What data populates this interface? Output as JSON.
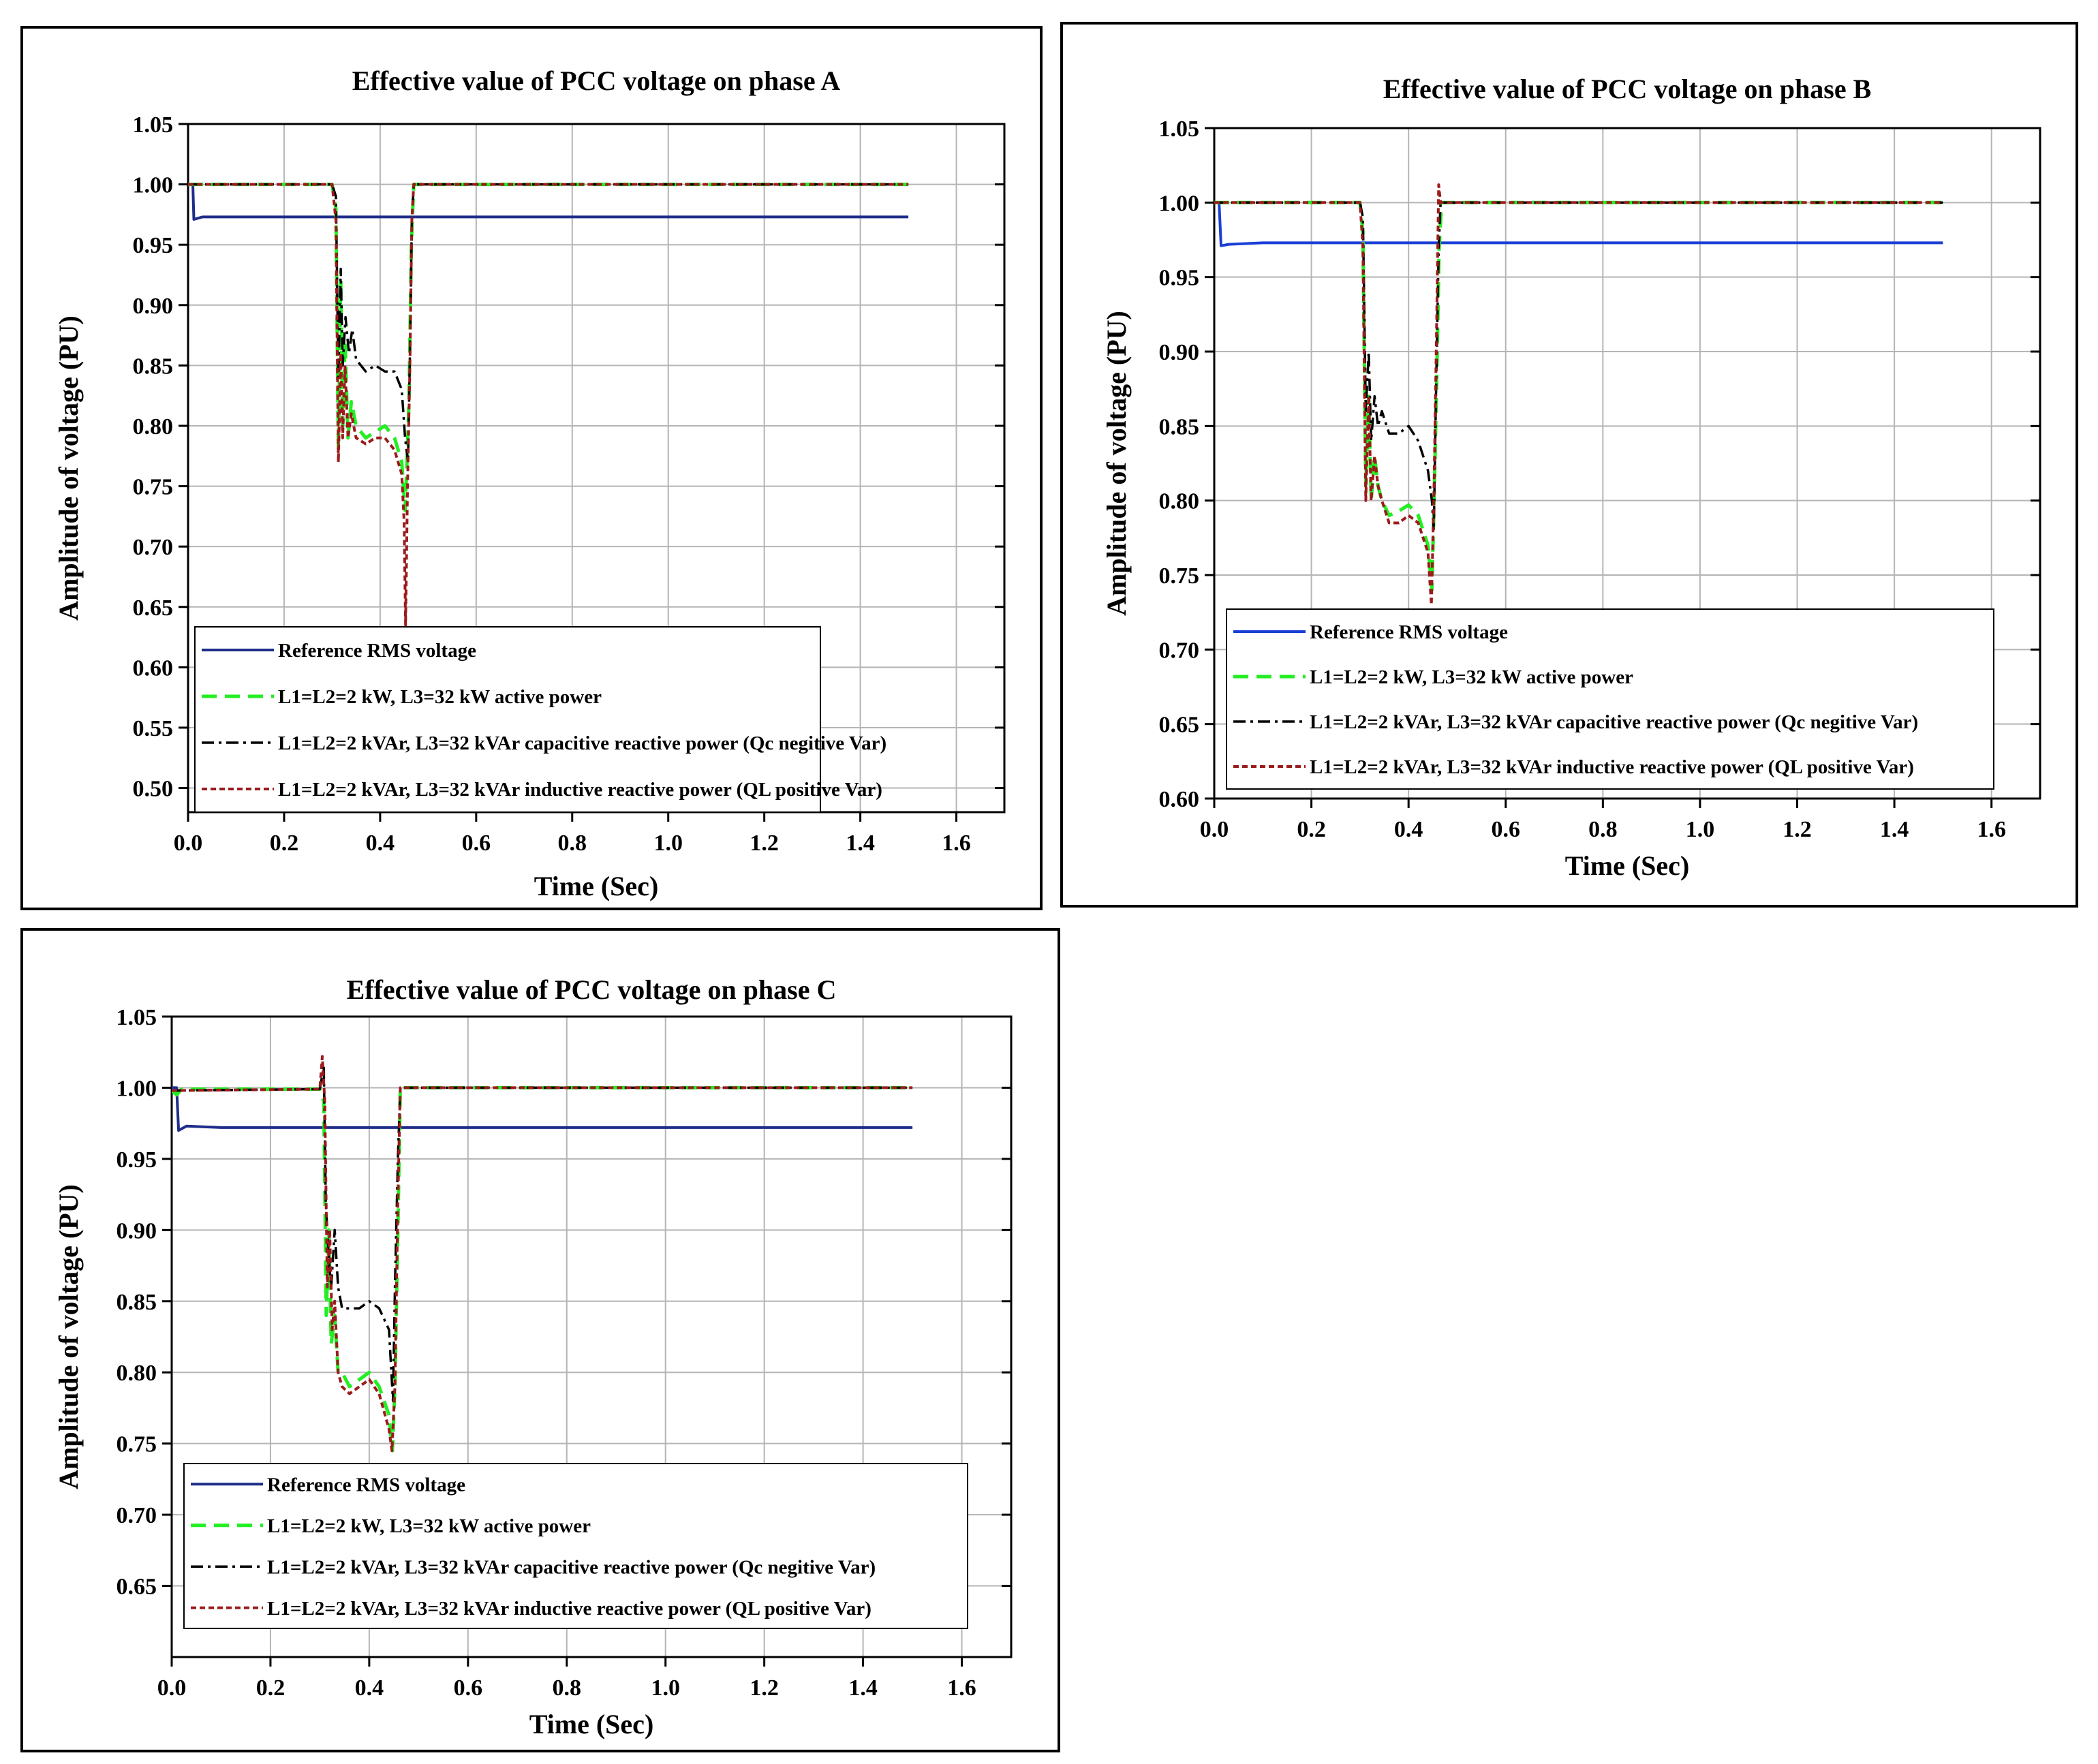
{
  "chart_data": [
    {
      "id": "a",
      "type": "line",
      "title": "Effective value of PCC voltage on phase A",
      "xlabel": "Time (Sec)",
      "ylabel": "Amplitude of voltage (PU)",
      "xlim": [
        0.0,
        1.7
      ],
      "ylim": [
        0.48,
        1.05
      ],
      "x_ticks": [
        "0.0",
        "0.2",
        "0.4",
        "0.6",
        "0.8",
        "1.0",
        "1.2",
        "1.4",
        "1.6"
      ],
      "y_ticks": [
        "0.50",
        "0.55",
        "0.60",
        "0.65",
        "0.70",
        "0.75",
        "0.80",
        "0.85",
        "0.90",
        "0.95",
        "1.00",
        "1.05"
      ],
      "grid": true,
      "legend_position": "bottom",
      "series": [
        {
          "name": "Reference RMS voltage",
          "color": "#1f2d8a",
          "style": "solid",
          "points": [
            [
              0.0,
              1.0
            ],
            [
              0.01,
              1.0
            ],
            [
              0.012,
              0.971
            ],
            [
              0.03,
              0.973
            ],
            [
              0.1,
              0.973
            ],
            [
              1.5,
              0.973
            ]
          ]
        },
        {
          "name": "L1=L2=2 kW, L3=32 kW active power",
          "color": "#22ee22",
          "style": "dashed",
          "points": [
            [
              0.0,
              1.0
            ],
            [
              0.3,
              1.0
            ],
            [
              0.308,
              0.98
            ],
            [
              0.313,
              0.78
            ],
            [
              0.318,
              0.92
            ],
            [
              0.322,
              0.8
            ],
            [
              0.327,
              0.87
            ],
            [
              0.333,
              0.79
            ],
            [
              0.34,
              0.82
            ],
            [
              0.35,
              0.8
            ],
            [
              0.37,
              0.79
            ],
            [
              0.39,
              0.795
            ],
            [
              0.41,
              0.8
            ],
            [
              0.43,
              0.79
            ],
            [
              0.445,
              0.77
            ],
            [
              0.452,
              0.73
            ],
            [
              0.456,
              0.77
            ],
            [
              0.46,
              0.82
            ],
            [
              0.465,
              0.95
            ],
            [
              0.47,
              1.0
            ],
            [
              1.5,
              1.0
            ]
          ]
        },
        {
          "name": "L1=L2=2 kVAr, L3=32 kVAr capacitive reactive power (Qc negitive Var)",
          "color": "#000000",
          "style": "dashdot",
          "points": [
            [
              0.0,
              1.0
            ],
            [
              0.3,
              1.0
            ],
            [
              0.308,
              0.99
            ],
            [
              0.313,
              0.84
            ],
            [
              0.318,
              0.93
            ],
            [
              0.322,
              0.85
            ],
            [
              0.328,
              0.89
            ],
            [
              0.335,
              0.86
            ],
            [
              0.342,
              0.88
            ],
            [
              0.35,
              0.855
            ],
            [
              0.37,
              0.845
            ],
            [
              0.39,
              0.85
            ],
            [
              0.41,
              0.845
            ],
            [
              0.43,
              0.845
            ],
            [
              0.445,
              0.83
            ],
            [
              0.452,
              0.79
            ],
            [
              0.458,
              0.77
            ],
            [
              0.462,
              0.86
            ],
            [
              0.466,
              0.97
            ],
            [
              0.47,
              1.0
            ],
            [
              1.5,
              1.0
            ]
          ]
        },
        {
          "name": "L1=L2=2 kVAr, L3=32 kVAr inductive reactive power (QL positive Var)",
          "color": "#9b1b1b",
          "style": "dotted",
          "points": [
            [
              0.0,
              1.0
            ],
            [
              0.3,
              1.0
            ],
            [
              0.308,
              0.97
            ],
            [
              0.313,
              0.77
            ],
            [
              0.318,
              0.86
            ],
            [
              0.322,
              0.79
            ],
            [
              0.327,
              0.85
            ],
            [
              0.333,
              0.79
            ],
            [
              0.34,
              0.81
            ],
            [
              0.35,
              0.79
            ],
            [
              0.37,
              0.785
            ],
            [
              0.39,
              0.79
            ],
            [
              0.41,
              0.79
            ],
            [
              0.43,
              0.78
            ],
            [
              0.445,
              0.76
            ],
            [
              0.45,
              0.72
            ],
            [
              0.453,
              0.635
            ],
            [
              0.457,
              0.75
            ],
            [
              0.462,
              0.85
            ],
            [
              0.466,
              0.97
            ],
            [
              0.47,
              1.0
            ],
            [
              1.5,
              1.0
            ]
          ]
        }
      ]
    },
    {
      "id": "b",
      "type": "line",
      "title": "Effective value of PCC voltage on phase B",
      "xlabel": "Time (Sec)",
      "ylabel": "Amplitude of voltage (PU)",
      "xlim": [
        0.0,
        1.7
      ],
      "ylim": [
        0.6,
        1.05
      ],
      "x_ticks": [
        "0.0",
        "0.2",
        "0.4",
        "0.6",
        "0.8",
        "1.0",
        "1.2",
        "1.4",
        "1.6"
      ],
      "y_ticks": [
        "0.60",
        "0.65",
        "0.70",
        "0.75",
        "0.80",
        "0.85",
        "0.90",
        "0.95",
        "1.00",
        "1.05"
      ],
      "grid": true,
      "legend_position": "bottom",
      "series": [
        {
          "name": "Reference RMS voltage",
          "color": "#1a3fd6",
          "style": "solid",
          "points": [
            [
              0.0,
              1.0
            ],
            [
              0.01,
              1.0
            ],
            [
              0.014,
              0.971
            ],
            [
              0.03,
              0.972
            ],
            [
              0.1,
              0.973
            ],
            [
              1.5,
              0.973
            ]
          ]
        },
        {
          "name": "L1=L2=2 kW, L3=32 kW active power",
          "color": "#22ee22",
          "style": "dashed",
          "points": [
            [
              0.0,
              1.0
            ],
            [
              0.3,
              1.0
            ],
            [
              0.306,
              0.98
            ],
            [
              0.312,
              0.81
            ],
            [
              0.318,
              0.87
            ],
            [
              0.323,
              0.8
            ],
            [
              0.33,
              0.83
            ],
            [
              0.337,
              0.81
            ],
            [
              0.345,
              0.8
            ],
            [
              0.36,
              0.79
            ],
            [
              0.38,
              0.793
            ],
            [
              0.4,
              0.797
            ],
            [
              0.42,
              0.79
            ],
            [
              0.44,
              0.77
            ],
            [
              0.448,
              0.74
            ],
            [
              0.452,
              0.79
            ],
            [
              0.458,
              0.88
            ],
            [
              0.463,
              0.97
            ],
            [
              0.468,
              1.0
            ],
            [
              1.5,
              1.0
            ]
          ]
        },
        {
          "name": "L1=L2=2 kVAr, L3=32 kVAr capacitive reactive power (Qc negitive Var)",
          "color": "#000000",
          "style": "dashdot",
          "points": [
            [
              0.0,
              1.0
            ],
            [
              0.3,
              1.0
            ],
            [
              0.306,
              0.99
            ],
            [
              0.312,
              0.86
            ],
            [
              0.318,
              0.9
            ],
            [
              0.323,
              0.84
            ],
            [
              0.33,
              0.87
            ],
            [
              0.337,
              0.85
            ],
            [
              0.345,
              0.86
            ],
            [
              0.36,
              0.845
            ],
            [
              0.38,
              0.845
            ],
            [
              0.4,
              0.85
            ],
            [
              0.42,
              0.84
            ],
            [
              0.44,
              0.82
            ],
            [
              0.448,
              0.8
            ],
            [
              0.452,
              0.78
            ],
            [
              0.457,
              0.88
            ],
            [
              0.462,
              0.97
            ],
            [
              0.466,
              1.0
            ],
            [
              1.5,
              1.0
            ]
          ]
        },
        {
          "name": "L1=L2=2 kVAr, L3=32 kVAr inductive reactive power (QL positive Var)",
          "color": "#9b1b1b",
          "style": "dotted",
          "points": [
            [
              0.0,
              1.0
            ],
            [
              0.3,
              1.0
            ],
            [
              0.306,
              0.97
            ],
            [
              0.312,
              0.8
            ],
            [
              0.318,
              0.87
            ],
            [
              0.323,
              0.8
            ],
            [
              0.33,
              0.83
            ],
            [
              0.337,
              0.81
            ],
            [
              0.345,
              0.8
            ],
            [
              0.36,
              0.785
            ],
            [
              0.38,
              0.785
            ],
            [
              0.4,
              0.79
            ],
            [
              0.42,
              0.785
            ],
            [
              0.44,
              0.765
            ],
            [
              0.447,
              0.73
            ],
            [
              0.452,
              0.8
            ],
            [
              0.457,
              0.9
            ],
            [
              0.462,
              1.012
            ],
            [
              0.466,
              1.0
            ],
            [
              1.5,
              1.0
            ]
          ]
        }
      ]
    },
    {
      "id": "c",
      "type": "line",
      "title": "Effective value of PCC voltage on phase C",
      "xlabel": "Time (Sec)",
      "ylabel": "Amplitude of voltage (PU)",
      "xlim": [
        0.0,
        1.7
      ],
      "ylim": [
        0.6,
        1.05
      ],
      "x_ticks": [
        "0.0",
        "0.2",
        "0.4",
        "0.6",
        "0.8",
        "1.0",
        "1.2",
        "1.4",
        "1.6"
      ],
      "y_ticks": [
        "0.65",
        "0.70",
        "0.75",
        "0.80",
        "0.85",
        "0.90",
        "0.95",
        "1.00",
        "1.05"
      ],
      "grid": true,
      "legend_position": "bottom",
      "series": [
        {
          "name": "Reference RMS voltage",
          "color": "#1f2d8a",
          "style": "solid",
          "points": [
            [
              0.0,
              1.0
            ],
            [
              0.01,
              1.0
            ],
            [
              0.014,
              0.97
            ],
            [
              0.03,
              0.973
            ],
            [
              0.1,
              0.972
            ],
            [
              1.5,
              0.972
            ]
          ]
        },
        {
          "name": "L1=L2=2 kW, L3=32 kW active power",
          "color": "#22ee22",
          "style": "dashed",
          "points": [
            [
              0.0,
              0.998
            ],
            [
              0.01,
              0.995
            ],
            [
              0.02,
              0.999
            ],
            [
              0.3,
              0.999
            ],
            [
              0.308,
              0.99
            ],
            [
              0.313,
              0.84
            ],
            [
              0.318,
              0.9
            ],
            [
              0.323,
              0.82
            ],
            [
              0.33,
              0.84
            ],
            [
              0.337,
              0.8
            ],
            [
              0.345,
              0.8
            ],
            [
              0.36,
              0.79
            ],
            [
              0.38,
              0.795
            ],
            [
              0.4,
              0.8
            ],
            [
              0.42,
              0.79
            ],
            [
              0.44,
              0.77
            ],
            [
              0.447,
              0.745
            ],
            [
              0.452,
              0.79
            ],
            [
              0.458,
              0.9
            ],
            [
              0.463,
              1.0
            ],
            [
              1.5,
              1.0
            ]
          ]
        },
        {
          "name": "L1=L2=2 kVAr, L3=32 kVAr capacitive reactive power (Qc negitive Var)",
          "color": "#000000",
          "style": "dashdot",
          "points": [
            [
              0.0,
              0.998
            ],
            [
              0.3,
              0.999
            ],
            [
              0.308,
              1.015
            ],
            [
              0.312,
              0.92
            ],
            [
              0.318,
              0.88
            ],
            [
              0.323,
              0.86
            ],
            [
              0.33,
              0.9
            ],
            [
              0.337,
              0.86
            ],
            [
              0.345,
              0.845
            ],
            [
              0.36,
              0.845
            ],
            [
              0.38,
              0.845
            ],
            [
              0.4,
              0.85
            ],
            [
              0.42,
              0.845
            ],
            [
              0.44,
              0.83
            ],
            [
              0.448,
              0.78
            ],
            [
              0.452,
              0.86
            ],
            [
              0.458,
              0.95
            ],
            [
              0.463,
              1.0
            ],
            [
              1.5,
              1.0
            ]
          ]
        },
        {
          "name": "L1=L2=2 kVAr, L3=32 kVAr inductive reactive power (QL positive Var)",
          "color": "#9b1b1b",
          "style": "dotted",
          "points": [
            [
              0.0,
              0.998
            ],
            [
              0.3,
              0.999
            ],
            [
              0.305,
              1.022
            ],
            [
              0.31,
              0.99
            ],
            [
              0.315,
              0.86
            ],
            [
              0.32,
              0.9
            ],
            [
              0.325,
              0.83
            ],
            [
              0.33,
              0.85
            ],
            [
              0.337,
              0.8
            ],
            [
              0.345,
              0.79
            ],
            [
              0.36,
              0.785
            ],
            [
              0.38,
              0.79
            ],
            [
              0.4,
              0.795
            ],
            [
              0.42,
              0.785
            ],
            [
              0.44,
              0.76
            ],
            [
              0.446,
              0.745
            ],
            [
              0.452,
              0.79
            ],
            [
              0.458,
              0.92
            ],
            [
              0.463,
              1.0
            ],
            [
              1.5,
              1.0
            ]
          ]
        }
      ]
    }
  ]
}
